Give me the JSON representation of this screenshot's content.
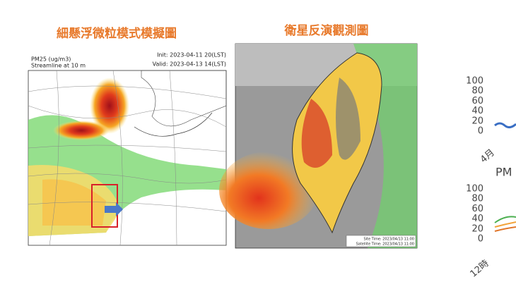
{
  "slide": {
    "left_title": "細懸浮微粒模式模擬圖",
    "right_title": "衛星反演觀測圖",
    "model_map": {
      "variable": "PM25 (ug/m3)",
      "streamline": "Streamline at 10 m",
      "init": "Init: 2023-04-11 20(LST)",
      "valid": "Valid: 2023-04-13 14(LST)"
    },
    "satellite_map": {
      "site_time": "Site Time: 2023/04/13 11:00",
      "satellite_time": "Satellite Time: 2023/04/13 11:00"
    },
    "side_charts": [
      {
        "yticks": [
          100,
          80,
          60,
          40,
          20,
          0
        ],
        "x_label": "4月"
      },
      {
        "title": "PM",
        "yticks": [
          100,
          80,
          60,
          40,
          20,
          0
        ],
        "x_label": "12時"
      }
    ]
  }
}
